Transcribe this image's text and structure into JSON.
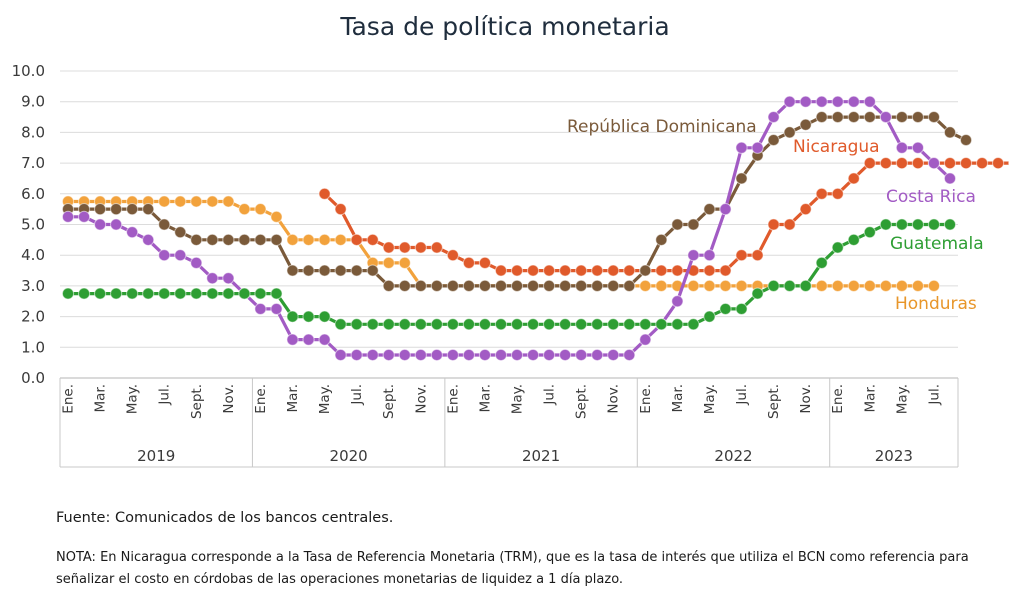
{
  "chart_data": {
    "type": "line",
    "title": "Tasa de política monetaria",
    "ylim": [
      0,
      10
    ],
    "yticks": [
      "0.0",
      "1.0",
      "2.0",
      "3.0",
      "4.0",
      "5.0",
      "6.0",
      "7.0",
      "8.0",
      "9.0",
      "10.0"
    ],
    "grid": true,
    "month_labels": [
      "Ene.",
      "Mar.",
      "May.",
      "Jul.",
      "Sept.",
      "Nov.",
      "Ene.",
      "Mar.",
      "May.",
      "Jul.",
      "Sept.",
      "Nov.",
      "Ene.",
      "Mar.",
      "May.",
      "Jul.",
      "Sept.",
      "Nov.",
      "Ene.",
      "Mar.",
      "May.",
      "Jul.",
      "Sept.",
      "Nov.",
      "Ene.",
      "Mar.",
      "May.",
      "Jul."
    ],
    "years": [
      "2019",
      "2020",
      "2021",
      "2022",
      "2023"
    ],
    "series": [
      {
        "name": "Honduras",
        "color": "#f2a23c",
        "label_color": "#e8962a",
        "values": [
          5.75,
          5.75,
          5.75,
          5.75,
          5.75,
          5.75,
          5.75,
          5.75,
          5.75,
          5.75,
          5.75,
          5.5,
          5.5,
          5.25,
          4.5,
          4.5,
          4.5,
          4.5,
          4.5,
          3.75,
          3.75,
          3.75,
          3.0,
          3.0,
          3.0,
          3.0,
          3.0,
          3.0,
          3.0,
          3.0,
          3.0,
          3.0,
          3.0,
          3.0,
          3.0,
          3.0,
          3.0,
          3.0,
          3.0,
          3.0,
          3.0,
          3.0,
          3.0,
          3.0,
          3.0,
          3.0,
          3.0,
          3.0,
          3.0,
          3.0,
          3.0,
          3.0,
          3.0,
          3.0,
          3.0
        ]
      },
      {
        "name": "Nicaragua",
        "color": "#e05a2b",
        "label_color": "#e05a2b",
        "values": [
          null,
          null,
          null,
          null,
          null,
          null,
          null,
          null,
          null,
          null,
          null,
          null,
          null,
          null,
          null,
          null,
          6.0,
          5.5,
          4.5,
          4.5,
          4.25,
          4.25,
          4.25,
          4.25,
          4.0,
          3.75,
          3.75,
          3.5,
          3.5,
          3.5,
          3.5,
          3.5,
          3.5,
          3.5,
          3.5,
          3.5,
          3.5,
          3.5,
          3.5,
          3.5,
          3.5,
          3.5,
          4.0,
          4.0,
          5.0,
          5.0,
          5.5,
          6.0,
          6.0,
          6.5,
          7.0,
          7.0,
          7.0,
          7.0,
          7.0,
          7.0,
          7.0,
          7.0,
          7.0,
          7.0
        ]
      },
      {
        "name": "República Dominicana",
        "color": "#7a5a3a",
        "label_color": "#7a5a3a",
        "values": [
          5.5,
          5.5,
          5.5,
          5.5,
          5.5,
          5.5,
          5.0,
          4.75,
          4.5,
          4.5,
          4.5,
          4.5,
          4.5,
          4.5,
          3.5,
          3.5,
          3.5,
          3.5,
          3.5,
          3.5,
          3.0,
          3.0,
          3.0,
          3.0,
          3.0,
          3.0,
          3.0,
          3.0,
          3.0,
          3.0,
          3.0,
          3.0,
          3.0,
          3.0,
          3.0,
          3.0,
          3.5,
          4.5,
          5.0,
          5.0,
          5.5,
          5.5,
          6.5,
          7.25,
          7.75,
          8.0,
          8.25,
          8.5,
          8.5,
          8.5,
          8.5,
          8.5,
          8.5,
          8.5,
          8.5,
          8.0,
          7.75
        ]
      },
      {
        "name": "Costa Rica",
        "color": "#a25bc4",
        "label_color": "#a25bc4",
        "values": [
          5.25,
          5.25,
          5.0,
          5.0,
          4.75,
          4.5,
          4.0,
          4.0,
          3.75,
          3.25,
          3.25,
          2.75,
          2.25,
          2.25,
          1.25,
          1.25,
          1.25,
          0.75,
          0.75,
          0.75,
          0.75,
          0.75,
          0.75,
          0.75,
          0.75,
          0.75,
          0.75,
          0.75,
          0.75,
          0.75,
          0.75,
          0.75,
          0.75,
          0.75,
          0.75,
          0.75,
          1.25,
          1.75,
          2.5,
          4.0,
          4.0,
          5.5,
          7.5,
          7.5,
          8.5,
          9.0,
          9.0,
          9.0,
          9.0,
          9.0,
          9.0,
          8.5,
          7.5,
          7.5,
          7.0,
          6.5
        ]
      },
      {
        "name": "Guatemala",
        "color": "#2e9e33",
        "label_color": "#2e9e33",
        "values": [
          2.75,
          2.75,
          2.75,
          2.75,
          2.75,
          2.75,
          2.75,
          2.75,
          2.75,
          2.75,
          2.75,
          2.75,
          2.75,
          2.75,
          2.0,
          2.0,
          2.0,
          1.75,
          1.75,
          1.75,
          1.75,
          1.75,
          1.75,
          1.75,
          1.75,
          1.75,
          1.75,
          1.75,
          1.75,
          1.75,
          1.75,
          1.75,
          1.75,
          1.75,
          1.75,
          1.75,
          1.75,
          1.75,
          1.75,
          1.75,
          2.0,
          2.25,
          2.25,
          2.75,
          3.0,
          3.0,
          3.0,
          3.75,
          4.25,
          4.5,
          4.75,
          5.0,
          5.0,
          5.0,
          5.0,
          5.0
        ]
      }
    ]
  },
  "footer": {
    "source": "Fuente: Comunicados de los bancos centrales.",
    "note": "NOTA: En Nicaragua corresponde a la Tasa de Referencia Monetaria (TRM), que es la tasa de interés que utiliza el BCN como referencia para señalizar el costo en córdobas de las operaciones monetarias de liquidez a 1 día plazo."
  }
}
